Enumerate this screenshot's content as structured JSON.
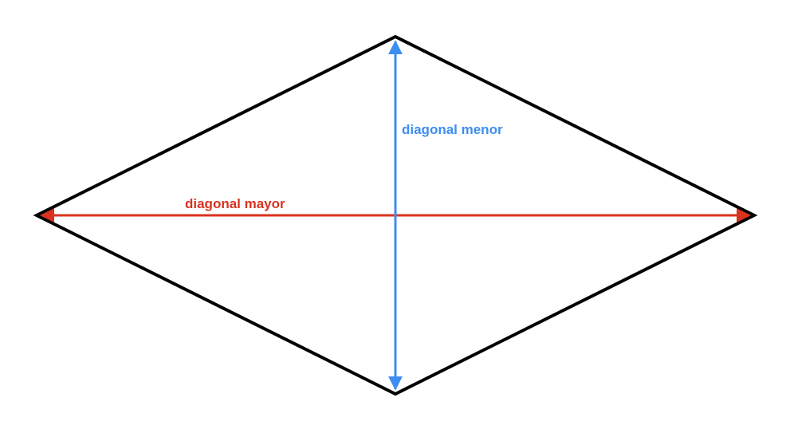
{
  "diagram": {
    "shape": "rhombus",
    "outline_color": "#000000",
    "major_diagonal": {
      "label": "diagonal mayor",
      "color": "#d9321f"
    },
    "minor_diagonal": {
      "label": "diagonal menor",
      "color": "#3d8ef0"
    }
  }
}
